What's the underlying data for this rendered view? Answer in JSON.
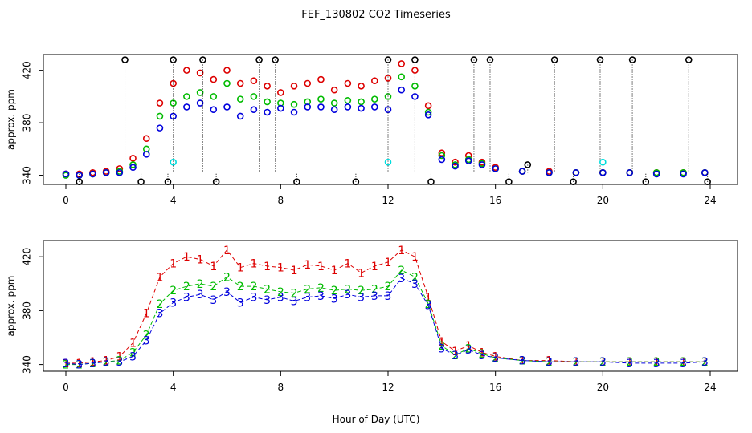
{
  "title": "FEF_130802  CO2 Timeseries",
  "xlabel": "Hour of Day (UTC)",
  "chart_data": [
    {
      "type": "scatter",
      "panel": "top",
      "ylabel": "approx. ppm",
      "xlim": [
        0,
        24
      ],
      "ylim": [
        333,
        432
      ],
      "x_ticks": [
        0,
        4,
        8,
        12,
        16,
        20,
        24
      ],
      "y_ticks": [
        340,
        380,
        420
      ],
      "colors": {
        "s1": "#dd0000",
        "s2": "#00bb00",
        "s3": "#0000dd",
        "black": "#000000",
        "cyan": "#00dddd"
      },
      "series": [
        {
          "color_key": "s1",
          "x": [
            0.0,
            0.5,
            1.0,
            1.5,
            2.0,
            2.5,
            3.0,
            3.5,
            4.0,
            4.5,
            5.0,
            5.5,
            6.0,
            6.5,
            7.0,
            7.5,
            8.0,
            8.5,
            9.0,
            9.5,
            10.0,
            10.5,
            11.0,
            11.5,
            12.0,
            12.5,
            13.0,
            13.5,
            14.0,
            14.5,
            15.0,
            15.5,
            16.0,
            17.0,
            18.0,
            19.0,
            20.0,
            21.0,
            22.0,
            23.0,
            23.8
          ],
          "y": [
            341,
            341,
            342,
            343,
            345,
            353,
            368,
            395,
            410,
            420,
            418,
            413,
            420,
            410,
            412,
            408,
            403,
            408,
            410,
            413,
            405,
            410,
            408,
            412,
            414,
            425,
            420,
            393,
            357,
            350,
            355,
            350,
            346,
            343,
            343,
            342,
            342,
            342,
            342,
            342,
            342
          ]
        },
        {
          "color_key": "s2",
          "x": [
            0.0,
            0.5,
            1.0,
            1.5,
            2.0,
            2.5,
            3.0,
            3.5,
            4.0,
            4.5,
            5.0,
            5.5,
            6.0,
            6.5,
            7.0,
            7.5,
            8.0,
            8.5,
            9.0,
            9.5,
            10.0,
            10.5,
            11.0,
            11.5,
            12.0,
            12.5,
            13.0,
            13.5,
            14.0,
            14.5,
            15.0,
            15.5,
            16.0,
            17.0,
            18.0,
            19.0,
            20.0,
            21.0,
            22.0,
            23.0,
            23.8
          ],
          "y": [
            340,
            340,
            341,
            342,
            343,
            348,
            360,
            385,
            395,
            400,
            403,
            400,
            410,
            398,
            400,
            396,
            395,
            394,
            396,
            398,
            395,
            397,
            396,
            398,
            400,
            415,
            408,
            388,
            355,
            348,
            352,
            349,
            345,
            343,
            342,
            342,
            342,
            342,
            342,
            342,
            342
          ]
        },
        {
          "color_key": "s3",
          "x": [
            0.0,
            0.5,
            1.0,
            1.5,
            2.0,
            2.5,
            3.0,
            3.5,
            4.0,
            4.5,
            5.0,
            5.5,
            6.0,
            6.5,
            7.0,
            7.5,
            8.0,
            8.5,
            9.0,
            9.5,
            10.0,
            10.5,
            11.0,
            11.5,
            12.0,
            12.5,
            13.0,
            13.5,
            14.0,
            14.5,
            15.0,
            15.5,
            16.0,
            17.0,
            18.0,
            19.0,
            20.0,
            21.0,
            22.0,
            23.0,
            23.8
          ],
          "y": [
            341,
            340,
            341,
            342,
            342,
            346,
            356,
            376,
            385,
            392,
            395,
            390,
            392,
            385,
            390,
            388,
            391,
            388,
            392,
            392,
            390,
            392,
            391,
            392,
            390,
            405,
            400,
            386,
            352,
            347,
            351,
            348,
            345,
            343,
            342,
            342,
            342,
            342,
            341,
            341,
            342
          ]
        },
        {
          "color_key": "black",
          "x": [
            0.5,
            2.2,
            2.8,
            3.8,
            4.0,
            5.1,
            5.6,
            7.2,
            7.8,
            8.6,
            10.8,
            12.0,
            13.0,
            13.6,
            15.2,
            15.8,
            16.5,
            17.2,
            18.2,
            18.9,
            19.9,
            21.1,
            21.6,
            23.2,
            23.9
          ],
          "y": [
            335,
            428,
            335,
            335,
            428,
            428,
            335,
            428,
            428,
            335,
            335,
            428,
            428,
            335,
            428,
            428,
            335,
            348,
            428,
            335,
            428,
            428,
            335,
            428,
            335
          ]
        },
        {
          "color_key": "cyan",
          "x": [
            4.0,
            12.0,
            20.0
          ],
          "y": [
            350,
            350,
            350
          ]
        }
      ]
    },
    {
      "type": "scatter",
      "panel": "bottom",
      "ylabel": "approx. ppm",
      "xlim": [
        0,
        24
      ],
      "ylim": [
        335,
        432
      ],
      "x_ticks": [
        0,
        4,
        8,
        12,
        16,
        20,
        24
      ],
      "y_ticks": [
        340,
        380,
        420
      ],
      "colors": {
        "s1": "#dd0000",
        "s2": "#00bb00",
        "s3": "#0000dd"
      },
      "series": [
        {
          "name": "1",
          "color_key": "s1",
          "x": [
            0.0,
            0.5,
            1.0,
            1.5,
            2.0,
            2.5,
            3.0,
            3.5,
            4.0,
            4.5,
            5.0,
            5.5,
            6.0,
            6.5,
            7.0,
            7.5,
            8.0,
            8.5,
            9.0,
            9.5,
            10.0,
            10.5,
            11.0,
            11.5,
            12.0,
            12.5,
            13.0,
            13.5,
            14.0,
            14.5,
            15.0,
            15.5,
            16.0,
            17.0,
            18.0,
            19.0,
            20.0,
            21.0,
            22.0,
            23.0,
            23.8
          ],
          "y": [
            341,
            341,
            342,
            343,
            346,
            356,
            378,
            405,
            415,
            420,
            418,
            413,
            425,
            412,
            415,
            413,
            412,
            410,
            414,
            413,
            410,
            415,
            408,
            413,
            416,
            425,
            420,
            390,
            357,
            350,
            354,
            349,
            346,
            343,
            343,
            342,
            342,
            342,
            342,
            342,
            342
          ]
        },
        {
          "name": "2",
          "color_key": "s2",
          "x": [
            0.0,
            0.5,
            1.0,
            1.5,
            2.0,
            2.5,
            3.0,
            3.5,
            4.0,
            4.5,
            5.0,
            5.5,
            6.0,
            6.5,
            7.0,
            7.5,
            8.0,
            8.5,
            9.0,
            9.5,
            10.0,
            10.5,
            11.0,
            11.5,
            12.0,
            12.5,
            13.0,
            13.5,
            14.0,
            14.5,
            15.0,
            15.5,
            16.0,
            17.0,
            18.0,
            19.0,
            20.0,
            21.0,
            22.0,
            23.0,
            23.8
          ],
          "y": [
            340,
            340,
            341,
            342,
            343,
            349,
            362,
            385,
            395,
            398,
            400,
            398,
            405,
            398,
            398,
            396,
            394,
            393,
            396,
            397,
            395,
            396,
            395,
            396,
            398,
            410,
            405,
            385,
            354,
            347,
            352,
            348,
            345,
            343,
            342,
            342,
            342,
            342,
            342,
            342,
            342
          ]
        },
        {
          "name": "3",
          "color_key": "s3",
          "x": [
            0.0,
            0.5,
            1.0,
            1.5,
            2.0,
            2.5,
            3.0,
            3.5,
            4.0,
            4.5,
            5.0,
            5.5,
            6.0,
            6.5,
            7.0,
            7.5,
            8.0,
            8.5,
            9.0,
            9.5,
            10.0,
            10.5,
            11.0,
            11.5,
            12.0,
            12.5,
            13.0,
            13.5,
            14.0,
            14.5,
            15.0,
            15.5,
            16.0,
            17.0,
            18.0,
            19.0,
            20.0,
            21.0,
            22.0,
            23.0,
            23.8
          ],
          "y": [
            341,
            340,
            341,
            342,
            342,
            346,
            358,
            378,
            386,
            390,
            392,
            388,
            394,
            386,
            390,
            388,
            390,
            387,
            390,
            391,
            389,
            392,
            390,
            391,
            391,
            404,
            400,
            384,
            352,
            347,
            351,
            347,
            345,
            343,
            342,
            342,
            342,
            341,
            341,
            341,
            342
          ]
        }
      ]
    }
  ]
}
